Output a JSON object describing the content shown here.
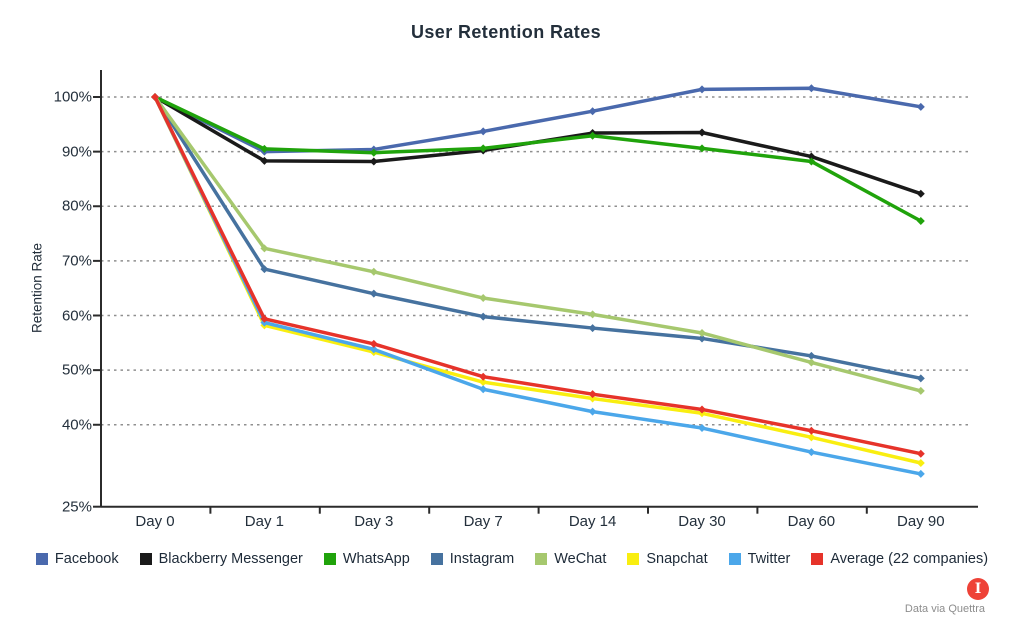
{
  "title": "User Retention Rates",
  "y_axis": {
    "label": "Retention Rate"
  },
  "x_axis": {
    "labels": [
      "Day 0",
      "Day 1",
      "Day 3",
      "Day 7",
      "Day 14",
      "Day 30",
      "Day 60",
      "Day 90"
    ]
  },
  "footer": {
    "attribution": "Data via Quettra",
    "logo_glyph": "I",
    "logo_color": "#ee4237"
  },
  "chart_data": {
    "type": "line",
    "title": "User Retention Rates",
    "xlabel": "",
    "ylabel": "Retention Rate",
    "categories": [
      "Day 0",
      "Day 1",
      "Day 3",
      "Day 7",
      "Day 14",
      "Day 30",
      "Day 60",
      "Day 90"
    ],
    "ylim": [
      25,
      105
    ],
    "yticks": [
      {
        "label": "100%",
        "value": 100
      },
      {
        "label": "90%",
        "value": 90
      },
      {
        "label": "80%",
        "value": 80
      },
      {
        "label": "70%",
        "value": 70
      },
      {
        "label": "60%",
        "value": 60
      },
      {
        "label": "50%",
        "value": 50
      },
      {
        "label": "40%",
        "value": 40
      },
      {
        "label": "25%",
        "value": 25
      }
    ],
    "grid": "horizontal-dashed",
    "legend_position": "bottom",
    "series": [
      {
        "name": "Facebook",
        "color": "#4a69ad",
        "values": [
          100,
          90.0,
          90.4,
          93.7,
          97.4,
          101.4,
          101.6,
          98.2
        ]
      },
      {
        "name": "Blackberry Messenger",
        "color": "#1a1a1a",
        "values": [
          100,
          88.3,
          88.2,
          90.2,
          93.4,
          93.5,
          89.1,
          82.3
        ]
      },
      {
        "name": "WhatsApp",
        "color": "#20a30b",
        "values": [
          100,
          90.5,
          89.8,
          90.6,
          92.9,
          90.6,
          88.2,
          77.3
        ]
      },
      {
        "name": "Instagram",
        "color": "#46729f",
        "values": [
          100,
          68.5,
          64.0,
          59.8,
          57.7,
          55.8,
          52.6,
          48.5
        ]
      },
      {
        "name": "WeChat",
        "color": "#a6c86e",
        "values": [
          100,
          72.3,
          68.0,
          63.2,
          60.2,
          56.8,
          51.4,
          46.2
        ]
      },
      {
        "name": "Snapchat",
        "color": "#f9ee10",
        "values": [
          100,
          58.2,
          53.3,
          47.8,
          44.8,
          42.1,
          37.7,
          33.0
        ]
      },
      {
        "name": "Twitter",
        "color": "#4ba7ea",
        "values": [
          100,
          58.7,
          53.8,
          46.5,
          42.4,
          39.4,
          35.0,
          31.0
        ]
      },
      {
        "name": "Average (22 companies)",
        "color": "#e6332a",
        "values": [
          100,
          59.4,
          54.8,
          48.8,
          45.6,
          42.8,
          38.9,
          34.7
        ]
      }
    ]
  }
}
